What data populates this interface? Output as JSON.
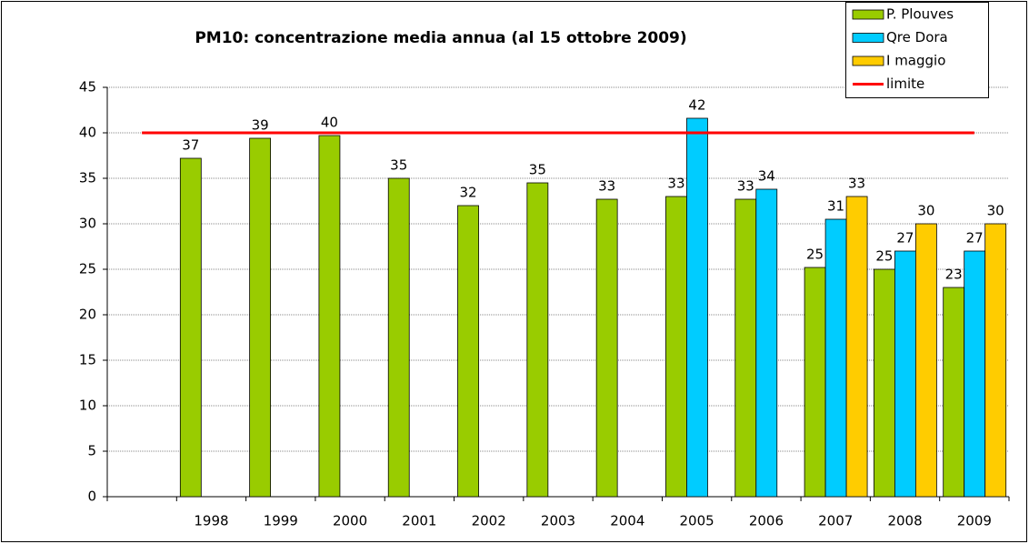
{
  "chart_data": {
    "type": "bar",
    "title": "PM10: concentrazione media annua (al 15 ottobre 2009)",
    "categories": [
      null,
      "1998",
      "1999",
      "2000",
      "2001",
      "2002",
      "2003",
      "2004",
      "2005",
      "2006",
      "2007",
      "2008",
      "2009"
    ],
    "series": [
      {
        "name": "P. Plouves",
        "color": "#99cc00",
        "kind": "bar",
        "values": [
          null,
          37.2,
          39.4,
          39.7,
          35,
          32,
          34.5,
          32.7,
          33,
          32.7,
          25.2,
          25,
          23
        ],
        "value_labels": [
          null,
          "37",
          "39",
          "40",
          "35",
          "32",
          "35",
          "33",
          "33",
          "33",
          "25",
          "25",
          "23"
        ]
      },
      {
        "name": "Qre Dora",
        "color": "#00ccff",
        "kind": "bar",
        "values": [
          null,
          null,
          null,
          null,
          null,
          null,
          null,
          null,
          41.6,
          33.8,
          30.5,
          27,
          27
        ],
        "value_labels": [
          null,
          null,
          null,
          null,
          null,
          null,
          null,
          null,
          "42",
          "34",
          "31",
          "27",
          "27"
        ]
      },
      {
        "name": "I maggio",
        "color": "#ffcc00",
        "kind": "bar",
        "values": [
          null,
          null,
          null,
          null,
          null,
          null,
          null,
          null,
          null,
          null,
          33,
          30,
          30
        ],
        "value_labels": [
          null,
          null,
          null,
          null,
          null,
          null,
          null,
          null,
          null,
          null,
          "33",
          "30",
          "30"
        ]
      },
      {
        "name": "limite",
        "color": "#ff0000",
        "kind": "line",
        "values": [
          40,
          40,
          40,
          40,
          40,
          40,
          40,
          40,
          40,
          40,
          40,
          40,
          40
        ]
      }
    ],
    "ylim": [
      0,
      45
    ],
    "yticks": [
      0,
      5,
      10,
      15,
      20,
      25,
      30,
      35,
      40,
      45
    ],
    "grid": true,
    "legend": "top-right"
  }
}
